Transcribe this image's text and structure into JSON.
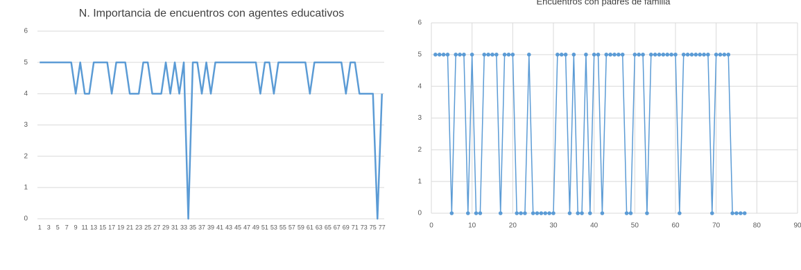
{
  "chart_data": [
    {
      "type": "line",
      "title": "N. Importancia de encuentros con agentes educativos",
      "categories": [
        "1",
        null,
        "3",
        null,
        "5",
        null,
        "7",
        null,
        "9",
        null,
        "11",
        null,
        "13",
        null,
        "15",
        null,
        "17",
        null,
        "19",
        null,
        "21",
        null,
        "23",
        null,
        "25",
        null,
        "27",
        null,
        "29",
        null,
        "31",
        null,
        "33",
        null,
        "35",
        null,
        "37",
        null,
        "39",
        null,
        "41",
        null,
        "43",
        null,
        "45",
        null,
        "47",
        null,
        "49",
        null,
        "51",
        null,
        "53",
        null,
        "55",
        null,
        "57",
        null,
        "59",
        null,
        "61",
        null,
        "63",
        null,
        "65",
        null,
        "67",
        null,
        "69",
        null,
        "71",
        null,
        "73",
        null,
        "75",
        null,
        "77"
      ],
      "values": [
        5,
        5,
        5,
        5,
        5,
        5,
        5,
        5,
        4,
        5,
        4,
        4,
        5,
        5,
        5,
        5,
        4,
        5,
        5,
        5,
        4,
        4,
        4,
        5,
        5,
        4,
        4,
        4,
        5,
        4,
        5,
        4,
        5,
        0,
        5,
        5,
        4,
        5,
        4,
        5,
        5,
        5,
        5,
        5,
        5,
        5,
        5,
        5,
        5,
        4,
        5,
        5,
        4,
        5,
        5,
        5,
        5,
        5,
        5,
        5,
        4,
        5,
        5,
        5,
        5,
        5,
        5,
        5,
        4,
        5,
        5,
        4,
        4,
        4,
        4,
        0,
        4
      ],
      "color": "#5b9bd5",
      "ylim": [
        0,
        6
      ],
      "yticks": [
        0,
        1,
        2,
        3,
        4,
        5,
        6
      ],
      "grid": true
    },
    {
      "type": "line",
      "title": "Encuentros con padres  de familia",
      "x": [
        1,
        2,
        3,
        4,
        5,
        6,
        7,
        8,
        9,
        10,
        11,
        12,
        13,
        14,
        15,
        16,
        17,
        18,
        19,
        20,
        21,
        22,
        23,
        24,
        25,
        26,
        27,
        28,
        29,
        30,
        31,
        32,
        33,
        34,
        35,
        36,
        37,
        38,
        39,
        40,
        41,
        42,
        43,
        44,
        45,
        46,
        47,
        48,
        49,
        50,
        51,
        52,
        53,
        54,
        55,
        56,
        57,
        58,
        59,
        60,
        61,
        62,
        63,
        64,
        65,
        66,
        67,
        68,
        69,
        70,
        71,
        72,
        73,
        74,
        75,
        76,
        77
      ],
      "values": [
        5,
        5,
        5,
        5,
        0,
        5,
        5,
        5,
        0,
        5,
        0,
        0,
        5,
        5,
        5,
        5,
        0,
        5,
        5,
        5,
        0,
        0,
        0,
        5,
        0,
        0,
        0,
        0,
        0,
        0,
        5,
        5,
        5,
        0,
        5,
        0,
        0,
        5,
        0,
        5,
        5,
        0,
        5,
        5,
        5,
        5,
        5,
        0,
        0,
        5,
        5,
        5,
        0,
        5,
        5,
        5,
        5,
        5,
        5,
        5,
        0,
        5,
        5,
        5,
        5,
        5,
        5,
        5,
        0,
        5,
        5,
        5,
        5,
        0,
        0,
        0,
        0
      ],
      "color": "#5b9bd5",
      "markers": true,
      "xlim": [
        0,
        90
      ],
      "xticks": [
        0,
        10,
        20,
        30,
        40,
        50,
        60,
        70,
        80,
        90
      ],
      "ylim": [
        0,
        6
      ],
      "yticks": [
        0,
        1,
        2,
        3,
        4,
        5,
        6
      ],
      "grid": true
    }
  ]
}
